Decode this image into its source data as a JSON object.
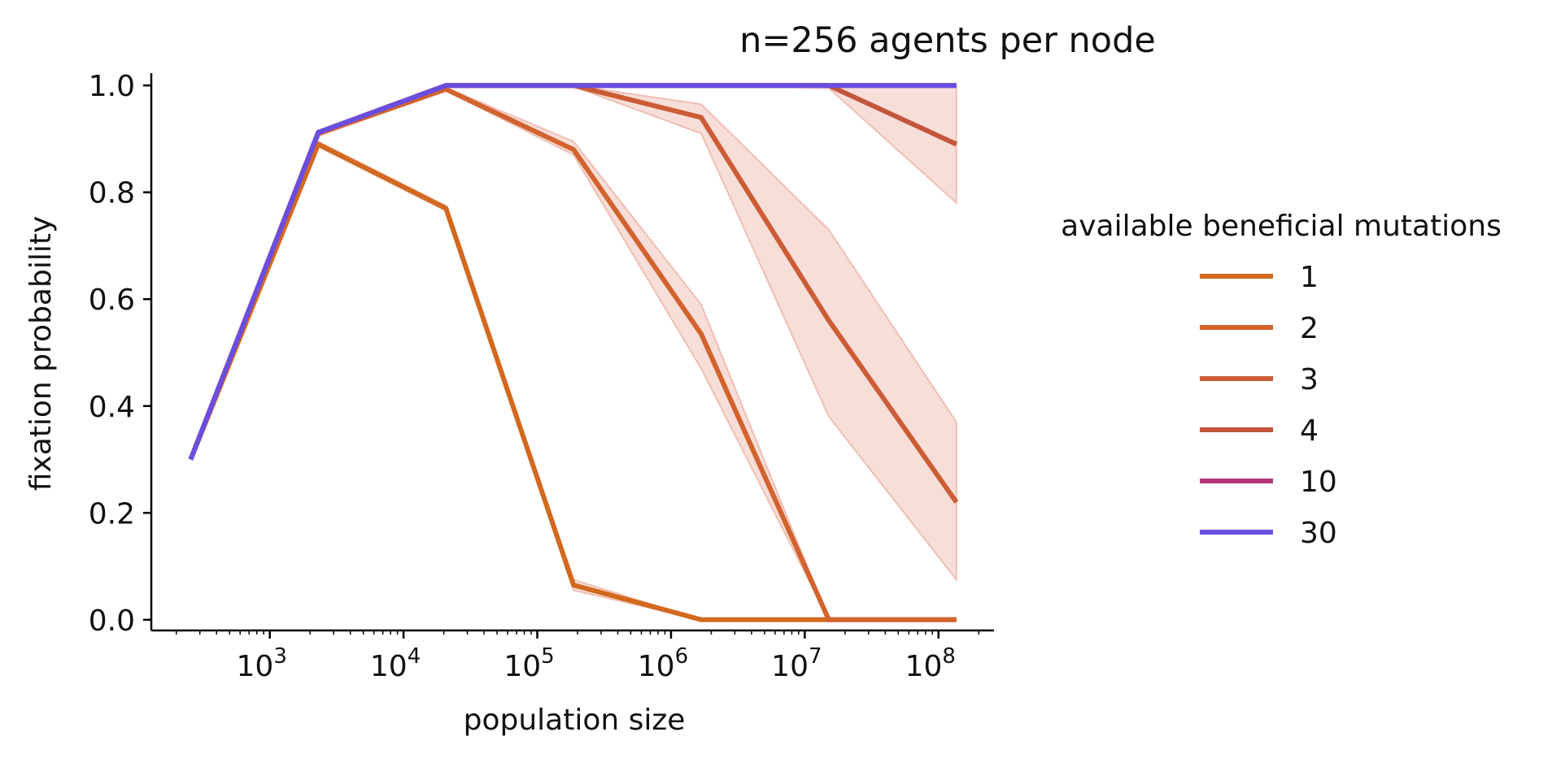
{
  "chart_data": {
    "type": "line",
    "title": "n=256 agents per node",
    "xlabel": "population size",
    "ylabel": "fixation probability",
    "x_scale": "log",
    "xlim": [
      130,
      260000000
    ],
    "ylim": [
      -0.02,
      1.02
    ],
    "x_ticks": [
      {
        "value": 1000,
        "base": "10",
        "exp": "3"
      },
      {
        "value": 10000,
        "base": "10",
        "exp": "4"
      },
      {
        "value": 100000,
        "base": "10",
        "exp": "5"
      },
      {
        "value": 1000000,
        "base": "10",
        "exp": "6"
      },
      {
        "value": 10000000,
        "base": "10",
        "exp": "7"
      },
      {
        "value": 100000000,
        "base": "10",
        "exp": "8"
      }
    ],
    "y_ticks": [
      {
        "value": 0.0,
        "label": "0.0"
      },
      {
        "value": 0.2,
        "label": "0.2"
      },
      {
        "value": 0.4,
        "label": "0.4"
      },
      {
        "value": 0.6,
        "label": "0.6"
      },
      {
        "value": 0.8,
        "label": "0.8"
      },
      {
        "value": 1.0,
        "label": "1.0"
      }
    ],
    "grid": false,
    "legend": {
      "title": "available beneficial mutations",
      "position": "right, outside plot"
    },
    "x": [
      256,
      2304,
      20736,
      186624,
      1679616,
      15116544,
      136048896
    ],
    "series": [
      {
        "name": "1",
        "color": "#d2691e",
        "values": [
          0.3,
          0.89,
          0.77,
          0.065,
          0.0,
          0.0,
          0.0
        ],
        "ci_low": [
          0.3,
          0.885,
          0.765,
          0.055,
          0.0,
          0.0,
          0.0
        ],
        "ci_high": [
          0.3,
          0.895,
          0.775,
          0.075,
          0.0,
          0.0,
          0.0
        ]
      },
      {
        "name": "2",
        "color": "#d2632e",
        "values": [
          0.3,
          0.91,
          0.993,
          0.88,
          0.535,
          0.0,
          0.0
        ],
        "ci_low": [
          0.3,
          0.905,
          0.99,
          0.87,
          0.47,
          0.0,
          0.0
        ],
        "ci_high": [
          0.3,
          0.915,
          0.996,
          0.895,
          0.59,
          0.0,
          0.0
        ]
      },
      {
        "name": "3",
        "color": "#cc5c35",
        "values": [
          0.3,
          0.912,
          1.0,
          1.0,
          0.94,
          0.56,
          0.22
        ],
        "ci_low": [
          0.3,
          0.91,
          1.0,
          0.998,
          0.91,
          0.38,
          0.075
        ],
        "ci_high": [
          0.3,
          0.915,
          1.0,
          1.0,
          0.965,
          0.73,
          0.37
        ]
      },
      {
        "name": "4",
        "color": "#c4553c",
        "values": [
          0.3,
          0.912,
          1.0,
          1.0,
          1.0,
          1.0,
          0.89
        ],
        "ci_low": [
          0.3,
          0.91,
          1.0,
          1.0,
          1.0,
          0.995,
          0.78
        ],
        "ci_high": [
          0.3,
          0.915,
          1.0,
          1.0,
          1.0,
          1.0,
          1.0
        ]
      },
      {
        "name": "10",
        "color": "#b5367a",
        "values": [
          0.3,
          0.912,
          1.0,
          1.0,
          1.0,
          1.0,
          1.0
        ]
      },
      {
        "name": "30",
        "color": "#6a4ee0",
        "values": [
          0.3,
          0.912,
          1.0,
          1.0,
          1.0,
          1.0,
          1.0
        ]
      }
    ],
    "ci_fill_color": "#e8a090"
  }
}
